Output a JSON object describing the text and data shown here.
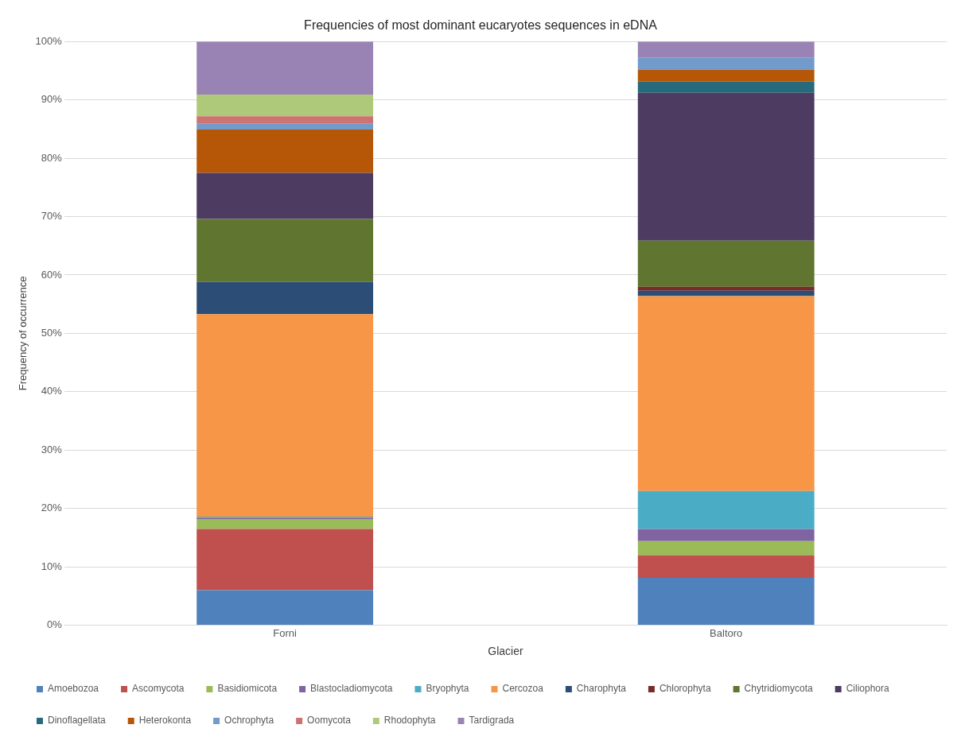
{
  "chart_data": {
    "type": "bar",
    "title": "Frequencies of most dominant eucaryotes sequences in eDNA",
    "xlabel": "Glacier",
    "ylabel": "Frequency of occurrence",
    "categories": [
      "Forni",
      "Baltoro"
    ],
    "stacked": true,
    "grid": "y",
    "legend": "bottom",
    "ylim": [
      0,
      100
    ],
    "yticks": [
      {
        "value": 0,
        "label": "0%"
      },
      {
        "value": 10,
        "label": "10%"
      },
      {
        "value": 20,
        "label": "20%"
      },
      {
        "value": 30,
        "label": "30%"
      },
      {
        "value": 40,
        "label": "40%"
      },
      {
        "value": 50,
        "label": "50%"
      },
      {
        "value": 60,
        "label": "60%"
      },
      {
        "value": 70,
        "label": "70%"
      },
      {
        "value": 80,
        "label": "80%"
      },
      {
        "value": 90,
        "label": "90%"
      },
      {
        "value": 100,
        "label": "100%"
      }
    ],
    "series": [
      {
        "name": "Amoebozoa",
        "color": "#4f81bd",
        "values": [
          6.0,
          8.1
        ]
      },
      {
        "name": "Ascomycota",
        "color": "#c0504d",
        "values": [
          10.5,
          3.9
        ]
      },
      {
        "name": "Basidiomicota",
        "color": "#9bbb59",
        "values": [
          1.7,
          2.4
        ]
      },
      {
        "name": "Blastocladiomycota",
        "color": "#8064a2",
        "values": [
          0.2,
          2.1
        ]
      },
      {
        "name": "Bryophyta",
        "color": "#4bacc6",
        "values": [
          0.2,
          6.5
        ]
      },
      {
        "name": "Cercozoa",
        "color": "#f79646",
        "values": [
          34.7,
          33.4
        ]
      },
      {
        "name": "Charophyta",
        "color": "#2c4d75",
        "values": [
          5.5,
          0.9
        ]
      },
      {
        "name": "Chlorophyta",
        "color": "#772c2a",
        "values": [
          0,
          0.7
        ]
      },
      {
        "name": "Chytridiomycota",
        "color": "#5f7530",
        "values": [
          10.8,
          7.9
        ]
      },
      {
        "name": "Ciliophora",
        "color": "#4d3b62",
        "values": [
          7.9,
          25.3
        ]
      },
      {
        "name": "Dinoflagellata",
        "color": "#276a7c",
        "values": [
          0,
          1.9
        ]
      },
      {
        "name": "Heterokonta",
        "color": "#b65708",
        "values": [
          7.4,
          2.1
        ]
      },
      {
        "name": "Ochrophyta",
        "color": "#729aca",
        "values": [
          1.0,
          2.0
        ]
      },
      {
        "name": "Oomycota",
        "color": "#cd7371",
        "values": [
          1.3,
          0
        ]
      },
      {
        "name": "Rhodophyta",
        "color": "#afc97a",
        "values": [
          3.7,
          0
        ]
      },
      {
        "name": "Tardigrada",
        "color": "#9983b5",
        "values": [
          9.1,
          2.8
        ]
      }
    ]
  }
}
